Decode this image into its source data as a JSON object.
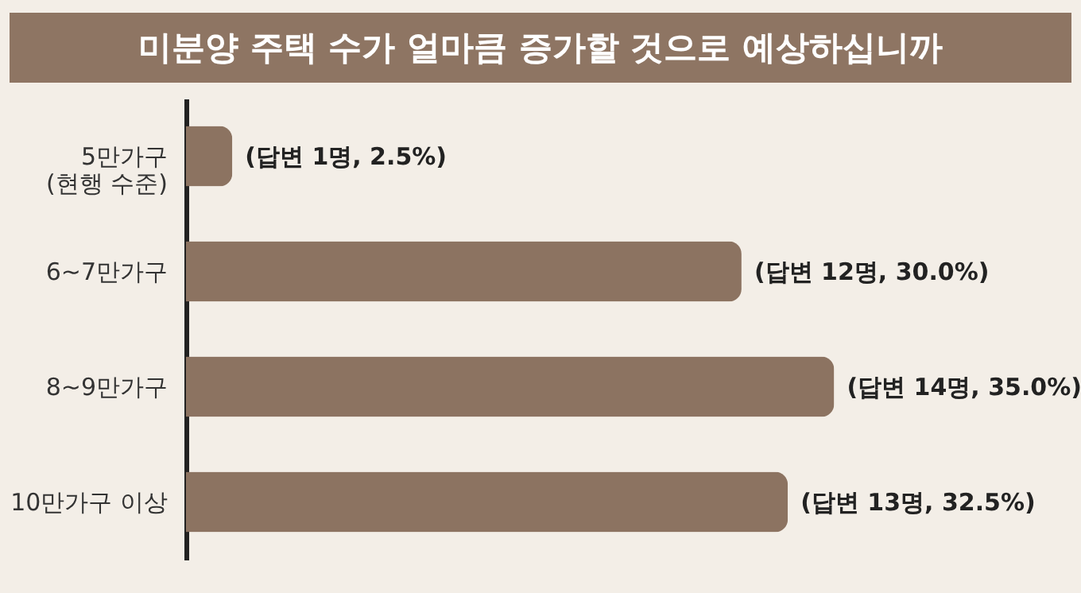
{
  "chart_data": {
    "type": "bar",
    "orientation": "horizontal",
    "title": "미분양 주택 수가 얼마큼 증가할 것으로 예상하십니까",
    "categories": [
      "5만가구\n(현행 수준)",
      "6~7만가구",
      "8~9만가구",
      "10만가구 이상"
    ],
    "values": [
      2.5,
      30.0,
      35.0,
      32.5
    ],
    "value_labels": [
      "(답변 1명, 2.5%)",
      "(답변 12명, 30.0%)",
      "(답변 14명, 35.0%)",
      "(답변 13명, 32.5%)"
    ],
    "color": "#8c7361",
    "grid": false
  }
}
